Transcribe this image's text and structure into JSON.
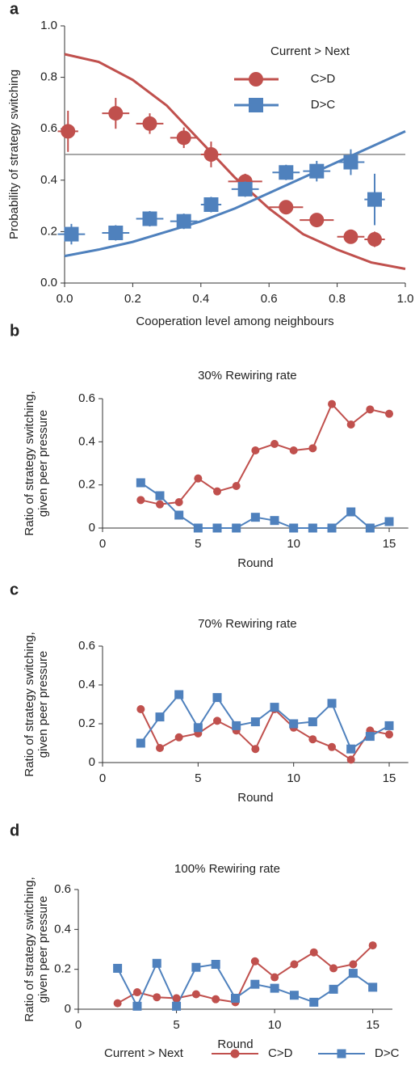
{
  "chart_data": [
    {
      "type": "scatter",
      "label": "a",
      "ylabel": "Probability of strategy switching",
      "xlabel": "Cooperation level among neighbours",
      "legend_title": "Current > Next",
      "xlim": [
        0,
        1
      ],
      "ylim": [
        0,
        1
      ],
      "xticks": [
        {
          "value": 0,
          "label": "0.0"
        },
        0.2,
        0.4,
        0.6,
        0.8,
        {
          "value": 1,
          "label": "1.0"
        }
      ],
      "yticks": [
        {
          "value": 0,
          "label": "0.0"
        },
        0.2,
        0.4,
        0.6,
        0.8,
        {
          "value": 1,
          "label": "1.0"
        }
      ],
      "hline": 0.5,
      "hline_color": "#8c8c8c",
      "series": [
        {
          "name": "C>D",
          "color": "#c0504d",
          "marker": "circle",
          "x": [
            0.01,
            0.15,
            0.25,
            0.35,
            0.43,
            0.53,
            0.65,
            0.74,
            0.84,
            0.91
          ],
          "values": [
            0.59,
            0.66,
            0.62,
            0.565,
            0.5,
            0.395,
            0.295,
            0.245,
            0.18,
            0.17
          ],
          "xerr": [
            0.03,
            0.04,
            0.04,
            0.04,
            0.03,
            0.05,
            0.05,
            0.05,
            0.04,
            0.03
          ],
          "yerr": [
            0.08,
            0.06,
            0.04,
            0.04,
            0.05,
            0.03,
            0.02,
            0.02,
            0.02,
            0.03
          ],
          "fit_x": [
            0,
            0.1,
            0.2,
            0.3,
            0.4,
            0.5,
            0.6,
            0.7,
            0.8,
            0.9,
            1
          ],
          "fit": [
            0.89,
            0.86,
            0.79,
            0.69,
            0.55,
            0.41,
            0.29,
            0.19,
            0.13,
            0.08,
            0.055
          ]
        },
        {
          "name": "D>C",
          "color": "#4f81bd",
          "marker": "square",
          "x": [
            0.02,
            0.15,
            0.25,
            0.35,
            0.43,
            0.53,
            0.65,
            0.74,
            0.84,
            0.91
          ],
          "values": [
            0.19,
            0.195,
            0.25,
            0.24,
            0.305,
            0.365,
            0.43,
            0.435,
            0.47,
            0.325
          ],
          "xerr": [
            0.04,
            0.04,
            0.04,
            0.04,
            0.03,
            0.04,
            0.04,
            0.04,
            0.04,
            0.03
          ],
          "yerr": [
            0.04,
            0.03,
            0.03,
            0.03,
            0.03,
            0.03,
            0.03,
            0.04,
            0.05,
            0.1
          ],
          "fit_x": [
            0,
            0.1,
            0.2,
            0.3,
            0.4,
            0.5,
            0.6,
            0.7,
            0.8,
            0.9,
            1
          ],
          "fit": [
            0.105,
            0.13,
            0.16,
            0.2,
            0.24,
            0.29,
            0.35,
            0.41,
            0.47,
            0.53,
            0.59
          ]
        }
      ]
    },
    {
      "type": "line",
      "label": "b",
      "title": "30% Rewiring rate",
      "ylabel": "Ratio of strategy switching, given peer pressure",
      "xlabel": "Round",
      "xlim": [
        0,
        16
      ],
      "ylim": [
        0,
        0.6
      ],
      "xticks": [
        0,
        5,
        10,
        15
      ],
      "yticks": [
        0,
        0.2,
        0.4,
        0.6
      ],
      "x": [
        2,
        3,
        4,
        5,
        6,
        7,
        8,
        9,
        10,
        11,
        12,
        13,
        14,
        15
      ],
      "series": [
        {
          "color": "#c0504d",
          "marker": "circle",
          "values": [
            0.13,
            0.11,
            0.12,
            0.23,
            0.17,
            0.195,
            0.36,
            0.39,
            0.36,
            0.37,
            0.575,
            0.48,
            0.55,
            0.53
          ]
        },
        {
          "color": "#4f81bd",
          "marker": "square",
          "values": [
            0.21,
            0.15,
            0.06,
            0,
            0,
            0,
            0.05,
            0.035,
            0,
            0,
            0,
            0.075,
            0,
            0.03
          ]
        }
      ]
    },
    {
      "type": "line",
      "label": "c",
      "title": "70% Rewiring rate",
      "ylabel": "Ratio of strategy switching, given peer pressure",
      "xlabel": "Round",
      "xlim": [
        0,
        16
      ],
      "ylim": [
        0,
        0.6
      ],
      "xticks": [
        0,
        5,
        10,
        15
      ],
      "yticks": [
        0,
        0.2,
        0.4,
        0.6
      ],
      "x": [
        2,
        3,
        4,
        5,
        6,
        7,
        8,
        9,
        10,
        11,
        12,
        13,
        14,
        15
      ],
      "series": [
        {
          "color": "#c0504d",
          "marker": "circle",
          "values": [
            0.275,
            0.075,
            0.13,
            0.15,
            0.215,
            0.165,
            0.07,
            0.275,
            0.18,
            0.12,
            0.08,
            0.015,
            0.165,
            0.145
          ]
        },
        {
          "color": "#4f81bd",
          "marker": "square",
          "values": [
            0.1,
            0.235,
            0.35,
            0.18,
            0.335,
            0.19,
            0.21,
            0.285,
            0.2,
            0.21,
            0.305,
            0.07,
            0.135,
            0.19
          ]
        }
      ]
    },
    {
      "type": "line",
      "label": "d",
      "title": "100% Rewiring rate",
      "ylabel": "Ratio of strategy switching, given peer pressure",
      "xlabel": "Round",
      "xlim": [
        0,
        16
      ],
      "ylim": [
        0,
        0.6
      ],
      "xticks": [
        0,
        5,
        10,
        15
      ],
      "yticks": [
        0,
        0.2,
        0.4,
        0.6
      ],
      "legend_title": "Current > Next",
      "x": [
        2,
        3,
        4,
        5,
        6,
        7,
        8,
        9,
        10,
        11,
        12,
        13,
        14,
        15
      ],
      "series": [
        {
          "name": "C>D",
          "color": "#c0504d",
          "marker": "circle",
          "values": [
            0.03,
            0.085,
            0.06,
            0.055,
            0.075,
            0.05,
            0.035,
            0.24,
            0.16,
            0.225,
            0.285,
            0.205,
            0.225,
            0.32
          ]
        },
        {
          "name": "D>C",
          "color": "#4f81bd",
          "marker": "square",
          "values": [
            0.205,
            0.015,
            0.23,
            0.015,
            0.21,
            0.225,
            0.055,
            0.125,
            0.105,
            0.07,
            0.035,
            0.1,
            0.18,
            0.11
          ]
        }
      ]
    }
  ]
}
